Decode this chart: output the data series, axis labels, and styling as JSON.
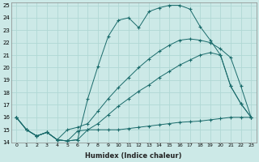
{
  "xlabel": "Humidex (Indice chaleur)",
  "xlim": [
    -0.5,
    23.5
  ],
  "ylim": [
    14,
    25.2
  ],
  "yticks": [
    14,
    15,
    16,
    17,
    18,
    19,
    20,
    21,
    22,
    23,
    24,
    25
  ],
  "xticks": [
    0,
    1,
    2,
    3,
    4,
    5,
    6,
    7,
    8,
    9,
    10,
    11,
    12,
    13,
    14,
    15,
    16,
    17,
    18,
    19,
    20,
    21,
    22,
    23
  ],
  "bg_color": "#cce9e7",
  "line_color": "#1a6b6b",
  "grid_color": "#b0d8d5",
  "line1_x": [
    0,
    1,
    2,
    3,
    4,
    5,
    6,
    7,
    8,
    9,
    10,
    11,
    12,
    13,
    14,
    15,
    16,
    17,
    18,
    19,
    20,
    21,
    22,
    23
  ],
  "line1_y": [
    16,
    15,
    14.5,
    14.8,
    14.2,
    14.1,
    14.2,
    17.5,
    20.1,
    22.5,
    23.8,
    24.0,
    23.2,
    24.5,
    24.8,
    25.0,
    25.0,
    24.7,
    23.3,
    22.2,
    21.0,
    18.5,
    17.1,
    16.0
  ],
  "line2_x": [
    0,
    1,
    2,
    3,
    4,
    5,
    6,
    7,
    8,
    9,
    10,
    11,
    12,
    13,
    14,
    15,
    16,
    17,
    18,
    19,
    20,
    21,
    22,
    23
  ],
  "line2_y": [
    16,
    15,
    14.5,
    14.8,
    14.2,
    15.0,
    15.2,
    15.5,
    16.5,
    17.5,
    18.4,
    19.2,
    20.0,
    20.7,
    21.3,
    21.8,
    22.2,
    22.3,
    22.2,
    22.0,
    21.5,
    20.8,
    18.5,
    16.0
  ],
  "line3_x": [
    0,
    1,
    2,
    3,
    4,
    5,
    6,
    7,
    8,
    9,
    10,
    11,
    12,
    13,
    14,
    15,
    16,
    17,
    18,
    19,
    20,
    21,
    22,
    23
  ],
  "line3_y": [
    16,
    15,
    14.5,
    14.8,
    14.2,
    14.1,
    14.2,
    15.0,
    15.5,
    16.2,
    16.9,
    17.5,
    18.1,
    18.6,
    19.2,
    19.7,
    20.2,
    20.6,
    21.0,
    21.2,
    21.0,
    18.5,
    17.1,
    16.0
  ],
  "line4_x": [
    0,
    1,
    2,
    3,
    4,
    5,
    6,
    7,
    8,
    9,
    10,
    11,
    12,
    13,
    14,
    15,
    16,
    17,
    18,
    19,
    20,
    21,
    22,
    23
  ],
  "line4_y": [
    16,
    15,
    14.5,
    14.8,
    14.2,
    14.1,
    14.9,
    15.0,
    15.0,
    15.0,
    15.0,
    15.1,
    15.2,
    15.3,
    15.4,
    15.5,
    15.6,
    15.65,
    15.7,
    15.8,
    15.9,
    16.0,
    16.0,
    16.0
  ]
}
